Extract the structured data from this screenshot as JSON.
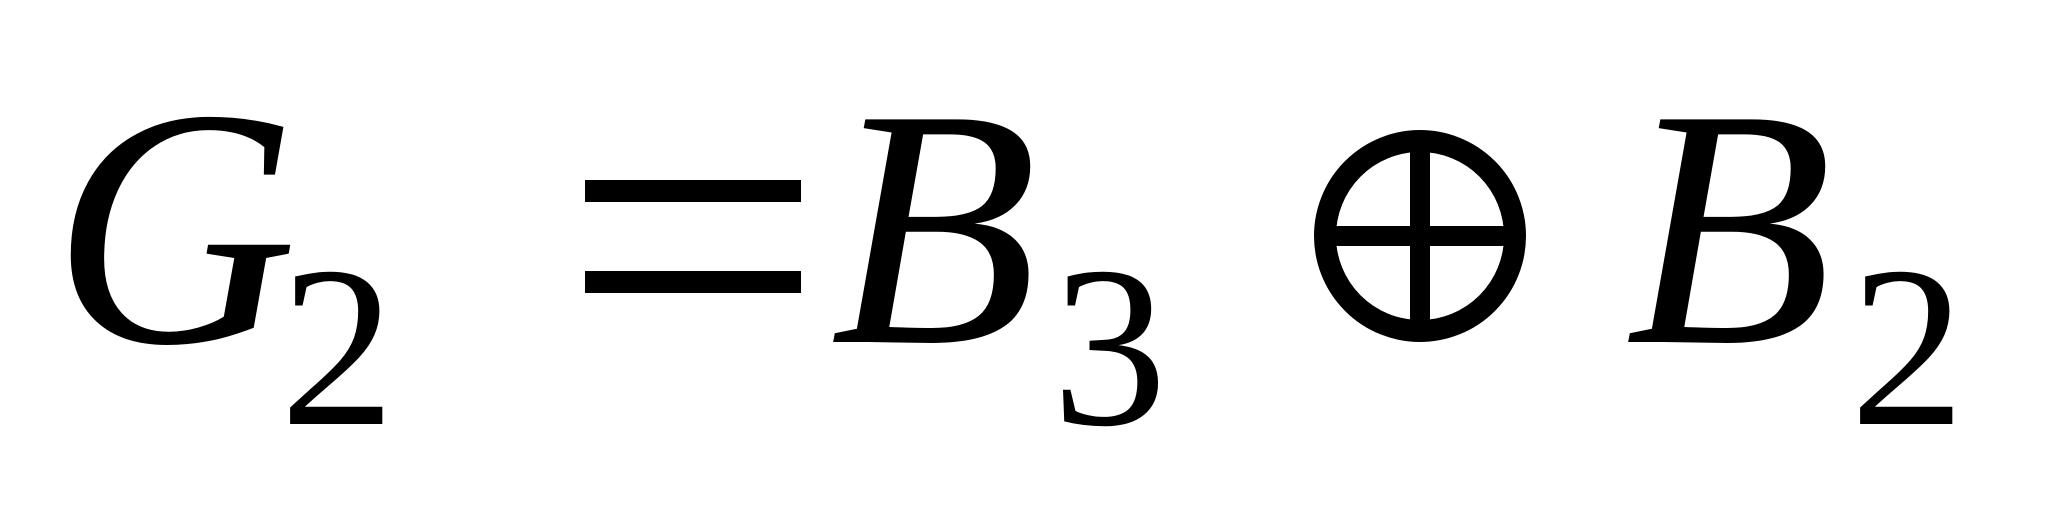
{
  "equation": {
    "lhs": {
      "symbol": "G",
      "subscript": "2"
    },
    "relation": "=",
    "rhs_first": {
      "symbol": "B",
      "subscript": "3"
    },
    "operator": "⊕",
    "rhs_second": {
      "symbol": "B",
      "subscript": "2"
    }
  }
}
